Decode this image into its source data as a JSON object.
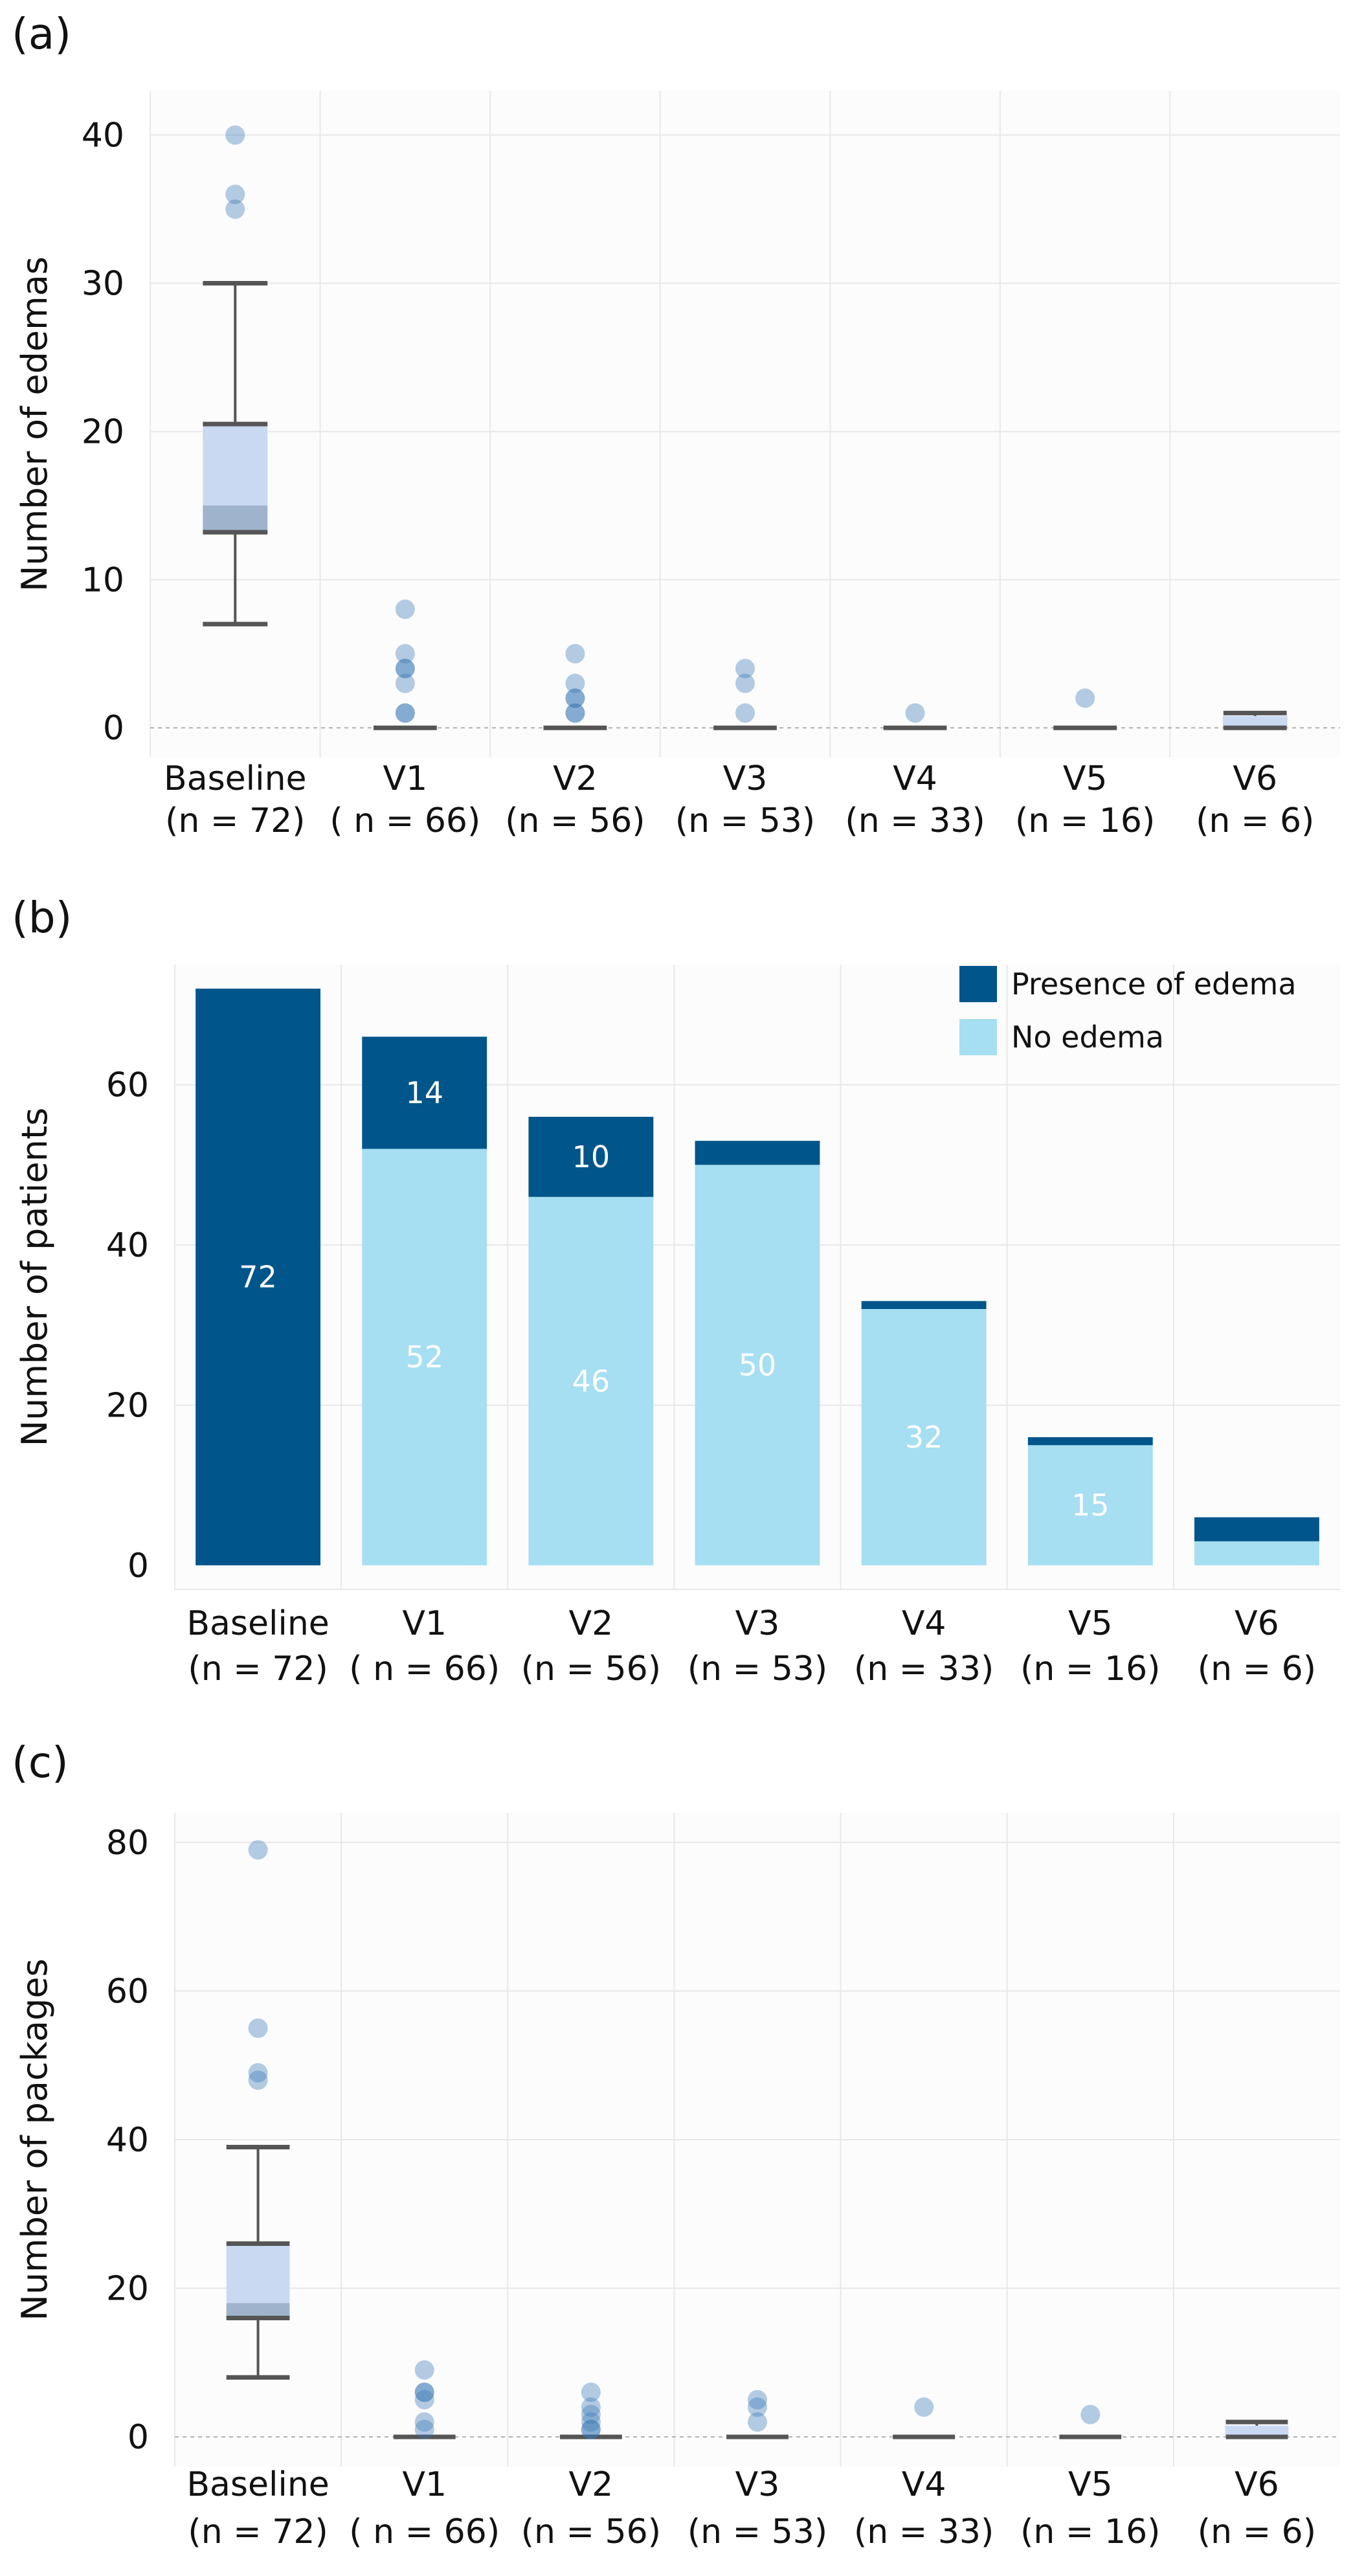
{
  "colors": {
    "dark": "#00558a",
    "light": "#a6def2",
    "box_fill": "#c9d9f1",
    "box_median": "#9fb3cc",
    "whisker": "#555555",
    "outlier": "#8ab4d6",
    "outlier_dark": "#3a7ab5",
    "grid": "#e8e8e8",
    "zero_line": "#b0b0b0",
    "plot_bg": "#fcfcfd"
  },
  "categories": [
    {
      "name": "Baseline",
      "n": "(n = 72)"
    },
    {
      "name": "V1",
      "n": "( n = 66)"
    },
    {
      "name": "V2",
      "n": "(n = 56)"
    },
    {
      "name": "V3",
      "n": "(n = 53)"
    },
    {
      "name": "V4",
      "n": "(n = 33)"
    },
    {
      "name": "V5",
      "n": "(n = 16)"
    },
    {
      "name": "V6",
      "n": "(n = 6)"
    }
  ],
  "chart_data": [
    {
      "panel": "(a)",
      "type": "box",
      "ylabel": "Number of edemas",
      "ylim": [
        -2,
        43
      ],
      "yticks": [
        0,
        10,
        20,
        30,
        40
      ],
      "boxes": [
        {
          "category": "Baseline",
          "whisker_low": 7,
          "q1": 13.2,
          "median": 15,
          "q3": 20.5,
          "whisker_high": 30,
          "outliers": [
            35,
            36,
            40
          ]
        },
        {
          "category": "V1",
          "whisker_low": 0,
          "q1": 0,
          "median": 0,
          "q3": 0,
          "whisker_high": 0,
          "outliers": [
            1,
            1,
            3,
            4,
            4,
            5,
            8
          ]
        },
        {
          "category": "V2",
          "whisker_low": 0,
          "q1": 0,
          "median": 0,
          "q3": 0,
          "whisker_high": 0,
          "outliers": [
            1,
            1,
            2,
            2,
            3,
            5
          ]
        },
        {
          "category": "V3",
          "whisker_low": 0,
          "q1": 0,
          "median": 0,
          "q3": 0,
          "whisker_high": 0,
          "outliers": [
            1,
            3,
            4
          ]
        },
        {
          "category": "V4",
          "whisker_low": 0,
          "q1": 0,
          "median": 0,
          "q3": 0,
          "whisker_high": 0,
          "outliers": [
            1
          ]
        },
        {
          "category": "V5",
          "whisker_low": 0,
          "q1": 0,
          "median": 0,
          "q3": 0,
          "whisker_high": 0,
          "outliers": [
            2
          ]
        },
        {
          "category": "V6",
          "whisker_low": 0,
          "q1": 0,
          "median": 0,
          "q3": 0.8,
          "whisker_high": 1,
          "outliers": []
        }
      ]
    },
    {
      "panel": "(b)",
      "type": "stacked-bar",
      "ylabel": "Number of patients",
      "ylim": [
        -3,
        75
      ],
      "yticks": [
        0,
        20,
        40,
        60
      ],
      "legend": [
        "Presence of edema",
        "No edema"
      ],
      "series": [
        {
          "name": "No edema",
          "values": [
            0,
            52,
            46,
            50,
            32,
            15,
            3
          ]
        },
        {
          "name": "Presence of edema",
          "values": [
            72,
            14,
            10,
            3,
            1,
            1,
            3
          ]
        }
      ],
      "labels": {
        "no_edema": [
          "",
          "52",
          "46",
          "50",
          "32",
          "15",
          ""
        ],
        "presence": [
          "72",
          "14",
          "10",
          "",
          "",
          "",
          ""
        ]
      }
    },
    {
      "panel": "(c)",
      "type": "box",
      "ylabel": "Number of packages",
      "ylim": [
        -4,
        84
      ],
      "yticks": [
        0,
        20,
        40,
        60,
        80
      ],
      "boxes": [
        {
          "category": "Baseline",
          "whisker_low": 8,
          "q1": 16,
          "median": 18,
          "q3": 26,
          "whisker_high": 39,
          "outliers": [
            48,
            49,
            55,
            79
          ]
        },
        {
          "category": "V1",
          "whisker_low": 0,
          "q1": 0,
          "median": 0,
          "q3": 0,
          "whisker_high": 0,
          "outliers": [
            1,
            2,
            5,
            6,
            6,
            9
          ]
        },
        {
          "category": "V2",
          "whisker_low": 0,
          "q1": 0,
          "median": 0,
          "q3": 0,
          "whisker_high": 0,
          "outliers": [
            1,
            1,
            2,
            3,
            4,
            6
          ]
        },
        {
          "category": "V3",
          "whisker_low": 0,
          "q1": 0,
          "median": 0,
          "q3": 0,
          "whisker_high": 0,
          "outliers": [
            2,
            4,
            5
          ]
        },
        {
          "category": "V4",
          "whisker_low": 0,
          "q1": 0,
          "median": 0,
          "q3": 0,
          "whisker_high": 0,
          "outliers": [
            4
          ]
        },
        {
          "category": "V5",
          "whisker_low": 0,
          "q1": 0,
          "median": 0,
          "q3": 0,
          "whisker_high": 0,
          "outliers": [
            3
          ]
        },
        {
          "category": "V6",
          "whisker_low": 0,
          "q1": 0,
          "median": 0,
          "q3": 1.5,
          "whisker_high": 2,
          "outliers": []
        }
      ]
    }
  ]
}
